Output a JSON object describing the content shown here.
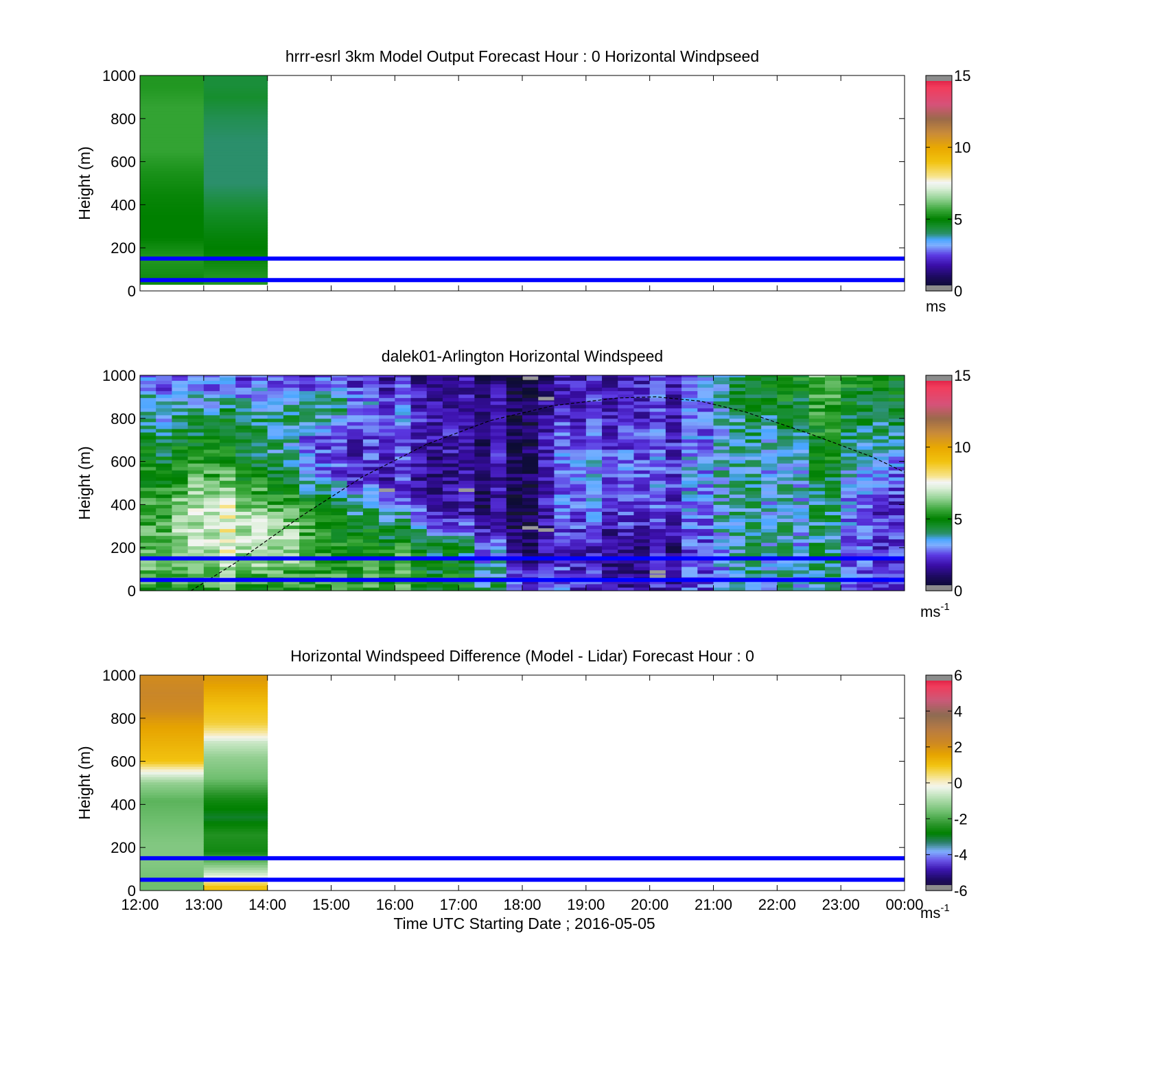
{
  "chart_data": [
    {
      "type": "heatmap",
      "title": "hrrr-esrl 3km Model Output   Forecast Hour : 0 Horizontal Windpseed",
      "ylabel": "Height (m)",
      "xlabel": "",
      "x_tick_labels": [],
      "y_ticks": [
        0,
        200,
        400,
        600,
        800,
        1000
      ],
      "ylim": [
        0,
        1000
      ],
      "xlim_hours": [
        12,
        24
      ],
      "colorbar": {
        "ticks": [
          0,
          5,
          10,
          15
        ],
        "range": [
          0,
          15
        ],
        "units": "ms",
        "units_sup": ""
      },
      "data_columns": [
        {
          "start": 12,
          "end": 13,
          "bottom": 30,
          "levels": [
            {
              "height": 60,
              "value": 5.2
            },
            {
              "height": 150,
              "value": 5.4
            },
            {
              "height": 250,
              "value": 5.0
            },
            {
              "height": 350,
              "value": 5.0
            },
            {
              "height": 450,
              "value": 5.1
            },
            {
              "height": 550,
              "value": 5.3
            },
            {
              "height": 650,
              "value": 5.6
            },
            {
              "height": 750,
              "value": 5.6
            },
            {
              "height": 850,
              "value": 5.6
            },
            {
              "height": 950,
              "value": 5.4
            }
          ]
        },
        {
          "start": 13,
          "end": 14,
          "bottom": 30,
          "levels": [
            {
              "height": 60,
              "value": 5.4
            },
            {
              "height": 150,
              "value": 5.1
            },
            {
              "height": 250,
              "value": 4.9
            },
            {
              "height": 350,
              "value": 4.6
            },
            {
              "height": 430,
              "value": 4.3
            },
            {
              "height": 500,
              "value": 4.0
            },
            {
              "height": 600,
              "value": 4.0
            },
            {
              "height": 700,
              "value": 4.0
            },
            {
              "height": 800,
              "value": 4.2
            },
            {
              "height": 900,
              "value": 4.5
            },
            {
              "height": 960,
              "value": 4.4
            }
          ]
        }
      ],
      "reference_lines_m": [
        50,
        150
      ],
      "reference_line_color": "#0000ff"
    },
    {
      "type": "heatmap",
      "title": "dalek01-Arlington  Horizontal Windspeed",
      "ylabel": "Height (m)",
      "xlabel": "",
      "x_tick_labels": [],
      "y_ticks": [
        0,
        200,
        400,
        600,
        800,
        1000
      ],
      "ylim": [
        0,
        1000
      ],
      "xlim_hours": [
        12,
        24
      ],
      "colorbar": {
        "ticks": [
          0,
          5,
          10,
          15
        ],
        "range": [
          0,
          15
        ],
        "units": "ms",
        "units_sup": "-1"
      },
      "time_step_hours": 0.25,
      "time_end_hours": 23.85,
      "data_bottom_m": 0,
      "profile_keyframes": [
        {
          "t": 12.0,
          "profile": [
            [
              0,
              5.0
            ],
            [
              100,
              5.8
            ],
            [
              250,
              5.6
            ],
            [
              450,
              5.0
            ],
            [
              650,
              4.6
            ],
            [
              850,
              3.6
            ],
            [
              1000,
              3.2
            ]
          ]
        },
        {
          "t": 13.0,
          "profile": [
            [
              0,
              5.2
            ],
            [
              200,
              6.6
            ],
            [
              400,
              6.8
            ],
            [
              550,
              5.4
            ],
            [
              650,
              4.8
            ],
            [
              850,
              3.4
            ],
            [
              1000,
              2.2
            ]
          ]
        },
        {
          "t": 14.0,
          "profile": [
            [
              0,
              5.6
            ],
            [
              200,
              7.6
            ],
            [
              300,
              7.4
            ],
            [
              450,
              6.0
            ],
            [
              600,
              4.8
            ],
            [
              800,
              4.6
            ],
            [
              1000,
              2.8
            ]
          ]
        },
        {
          "t": 15.0,
          "profile": [
            [
              0,
              5.6
            ],
            [
              200,
              5.4
            ],
            [
              400,
              4.8
            ],
            [
              550,
              2.6
            ],
            [
              700,
              2.2
            ],
            [
              850,
              4.2
            ],
            [
              1000,
              2.6
            ]
          ]
        },
        {
          "t": 16.0,
          "profile": [
            [
              0,
              5.6
            ],
            [
              200,
              5.8
            ],
            [
              350,
              3.8
            ],
            [
              500,
              2.2
            ],
            [
              650,
              2.6
            ],
            [
              800,
              3.0
            ],
            [
              1000,
              2.2
            ]
          ]
        },
        {
          "t": 17.0,
          "profile": [
            [
              0,
              5.2
            ],
            [
              200,
              4.4
            ],
            [
              350,
              1.8
            ],
            [
              550,
              1.6
            ],
            [
              750,
              2.0
            ],
            [
              1000,
              1.6
            ]
          ]
        },
        {
          "t": 18.0,
          "profile": [
            [
              0,
              3.4
            ],
            [
              200,
              1.4
            ],
            [
              400,
              1.0
            ],
            [
              600,
              1.2
            ],
            [
              800,
              1.2
            ],
            [
              1000,
              0.8
            ]
          ]
        },
        {
          "t": 19.0,
          "profile": [
            [
              0,
              2.0
            ],
            [
              200,
              1.8
            ],
            [
              400,
              3.0
            ],
            [
              600,
              3.2
            ],
            [
              800,
              2.2
            ],
            [
              1000,
              1.8
            ]
          ]
        },
        {
          "t": 20.0,
          "profile": [
            [
              0,
              1.6
            ],
            [
              200,
              1.4
            ],
            [
              400,
              2.4
            ],
            [
              600,
              2.6
            ],
            [
              800,
              2.0
            ],
            [
              1000,
              2.0
            ]
          ]
        },
        {
          "t": 21.0,
          "profile": [
            [
              0,
              2.8
            ],
            [
              200,
              2.8
            ],
            [
              400,
              3.4
            ],
            [
              600,
              3.2
            ],
            [
              800,
              3.0
            ],
            [
              1000,
              3.4
            ]
          ]
        },
        {
          "t": 22.0,
          "profile": [
            [
              0,
              3.6
            ],
            [
              200,
              3.8
            ],
            [
              400,
              3.6
            ],
            [
              600,
              3.4
            ],
            [
              800,
              4.4
            ],
            [
              1000,
              5.2
            ]
          ]
        },
        {
          "t": 23.0,
          "profile": [
            [
              0,
              3.4
            ],
            [
              200,
              3.4
            ],
            [
              400,
              3.6
            ],
            [
              600,
              4.6
            ],
            [
              800,
              5.0
            ],
            [
              1000,
              5.6
            ]
          ]
        },
        {
          "t": 23.85,
          "profile": [
            [
              0,
              2.6
            ],
            [
              200,
              2.4
            ],
            [
              400,
              2.2
            ],
            [
              600,
              3.2
            ],
            [
              800,
              4.6
            ],
            [
              1000,
              5.0
            ]
          ]
        }
      ],
      "missing_cells": [
        {
          "t": 18.0,
          "height": 985
        },
        {
          "t": 18.25,
          "height": 890
        },
        {
          "t": 15.75,
          "height": 465
        },
        {
          "t": 17.0,
          "height": 465
        },
        {
          "t": 18.0,
          "height": 290
        },
        {
          "t": 18.25,
          "height": 280
        },
        {
          "t": 20.0,
          "height": 85
        },
        {
          "t": 20.0,
          "height": 65
        }
      ],
      "boundary_layer_curve": [
        [
          12.8,
          0
        ],
        [
          13.5,
          130
        ],
        [
          14.5,
          340
        ],
        [
          15.5,
          530
        ],
        [
          16.5,
          680
        ],
        [
          17.5,
          790
        ],
        [
          18.5,
          860
        ],
        [
          19.5,
          895
        ],
        [
          20.1,
          900
        ],
        [
          20.8,
          880
        ],
        [
          21.5,
          830
        ],
        [
          22.5,
          730
        ],
        [
          23.5,
          620
        ],
        [
          24.0,
          550
        ]
      ],
      "reference_lines_m": [
        50,
        150
      ],
      "reference_line_color": "#0000ff"
    },
    {
      "type": "heatmap",
      "title": "Horizontal Windspeed Difference (Model - Lidar) Forecast Hour : 0",
      "ylabel": "Height (m)",
      "xlabel": "Time UTC  Starting Date ; 2016-05-05",
      "x_tick_labels": [
        "12:00",
        "13:00",
        "14:00",
        "15:00",
        "16:00",
        "17:00",
        "18:00",
        "19:00",
        "20:00",
        "21:00",
        "22:00",
        "23:00",
        "00:00"
      ],
      "y_ticks": [
        0,
        200,
        400,
        600,
        800,
        1000
      ],
      "ylim": [
        0,
        1000
      ],
      "xlim_hours": [
        12,
        24
      ],
      "colorbar": {
        "ticks": [
          -6,
          -4,
          -2,
          0,
          2,
          4,
          6
        ],
        "range": [
          -6,
          6
        ],
        "units": "ms",
        "units_sup": "-1"
      },
      "data_columns": [
        {
          "start": 12,
          "end": 13,
          "bottom": 0,
          "levels": [
            {
              "height": 40,
              "value": -1.6
            },
            {
              "height": 120,
              "value": -1.4
            },
            {
              "height": 220,
              "value": -1.4
            },
            {
              "height": 320,
              "value": -1.6
            },
            {
              "height": 420,
              "value": -1.8
            },
            {
              "height": 500,
              "value": -1.2
            },
            {
              "height": 550,
              "value": -0.2
            },
            {
              "height": 600,
              "value": 1.0
            },
            {
              "height": 680,
              "value": 1.3
            },
            {
              "height": 760,
              "value": 1.6
            },
            {
              "height": 840,
              "value": 2.2
            },
            {
              "height": 920,
              "value": 2.4
            },
            {
              "height": 980,
              "value": 2.2
            }
          ]
        },
        {
          "start": 13,
          "end": 14,
          "bottom": 0,
          "levels": [
            {
              "height": 20,
              "value": 1.0
            },
            {
              "height": 60,
              "value": -0.2
            },
            {
              "height": 100,
              "value": -1.0
            },
            {
              "height": 180,
              "value": -2.6
            },
            {
              "height": 260,
              "value": -2.4
            },
            {
              "height": 340,
              "value": -3.0
            },
            {
              "height": 420,
              "value": -2.6
            },
            {
              "height": 520,
              "value": -1.6
            },
            {
              "height": 620,
              "value": -1.2
            },
            {
              "height": 690,
              "value": -0.6
            },
            {
              "height": 730,
              "value": 0.2
            },
            {
              "height": 780,
              "value": 0.8
            },
            {
              "height": 850,
              "value": 1.0
            },
            {
              "height": 920,
              "value": 1.4
            },
            {
              "height": 980,
              "value": 1.8
            }
          ]
        }
      ],
      "reference_lines_m": [
        50,
        150
      ],
      "reference_line_color": "#0000ff"
    }
  ]
}
